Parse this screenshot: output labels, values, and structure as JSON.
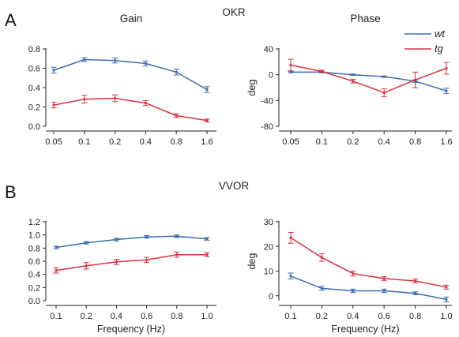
{
  "figure": {
    "panel_a": {
      "letter": "A",
      "label": "OKR"
    },
    "panel_b": {
      "letter": "B",
      "label": "VVOR"
    },
    "colors": {
      "wt": "#3b6eb0",
      "tg": "#d9333f"
    },
    "legend": [
      {
        "name": "wt",
        "color": "#3b6eb0"
      },
      {
        "name": "tg",
        "color": "#d9333f"
      }
    ]
  },
  "chart_data": [
    {
      "id": "okr_gain",
      "type": "line",
      "title": "Gain",
      "xlabel": "",
      "ylabel": "",
      "categories": [
        "0.05",
        "0.1",
        "0.2",
        "0.4",
        "0.8",
        "1.6"
      ],
      "ylim": [
        0,
        0.8
      ],
      "yticks": [
        "0.0",
        "0.2",
        "0.4",
        "0.6",
        "0.8"
      ],
      "series": [
        {
          "name": "wt",
          "color": "#3b6eb0",
          "values": [
            0.58,
            0.69,
            0.68,
            0.65,
            0.56,
            0.38
          ],
          "errors": [
            0.03,
            0.02,
            0.025,
            0.025,
            0.03,
            0.03
          ]
        },
        {
          "name": "tg",
          "color": "#d9333f",
          "values": [
            0.22,
            0.28,
            0.29,
            0.24,
            0.11,
            0.06
          ],
          "errors": [
            0.03,
            0.04,
            0.035,
            0.025,
            0.02,
            0.015
          ]
        }
      ]
    },
    {
      "id": "okr_phase",
      "type": "line",
      "title": "Phase",
      "xlabel": "",
      "ylabel": "deg",
      "categories": [
        "0.05",
        "0.1",
        "0.2",
        "0.4",
        "0.8",
        "1.6"
      ],
      "ylim": [
        -80,
        40
      ],
      "yticks": [
        "-80",
        "-40",
        "0",
        "40"
      ],
      "series": [
        {
          "name": "wt",
          "color": "#3b6eb0",
          "values": [
            4,
            4,
            0,
            -3,
            -10,
            -25
          ],
          "errors": [
            1,
            1,
            1,
            1,
            2,
            4
          ]
        },
        {
          "name": "tg",
          "color": "#d9333f",
          "values": [
            15,
            5,
            -10,
            -28,
            -8,
            10
          ],
          "errors": [
            9,
            2,
            3,
            6,
            12,
            9
          ]
        }
      ]
    },
    {
      "id": "vvor_gain",
      "type": "line",
      "title": "",
      "xlabel": "Frequency (Hz)",
      "ylabel": "",
      "categories": [
        "0.1",
        "0.2",
        "0.4",
        "0.6",
        "0.8",
        "1.0"
      ],
      "ylim": [
        0,
        1.2
      ],
      "yticks": [
        "0.0",
        "0.2",
        "0.4",
        "0.6",
        "0.8",
        "1.0",
        "1.2"
      ],
      "series": [
        {
          "name": "wt",
          "color": "#3b6eb0",
          "values": [
            0.81,
            0.88,
            0.93,
            0.97,
            0.98,
            0.94
          ],
          "errors": [
            0.02,
            0.02,
            0.02,
            0.02,
            0.02,
            0.02
          ]
        },
        {
          "name": "tg",
          "color": "#d9333f",
          "values": [
            0.46,
            0.53,
            0.59,
            0.62,
            0.7,
            0.7
          ],
          "errors": [
            0.04,
            0.05,
            0.04,
            0.04,
            0.04,
            0.03
          ]
        }
      ]
    },
    {
      "id": "vvor_phase",
      "type": "line",
      "title": "",
      "xlabel": "Frequency (Hz)",
      "ylabel": "deg",
      "categories": [
        "0.1",
        "0.2",
        "0.4",
        "0.6",
        "0.8",
        "1.0"
      ],
      "ylim": [
        -2,
        30
      ],
      "yticks": [
        "0",
        "10",
        "20",
        "30"
      ],
      "series": [
        {
          "name": "wt",
          "color": "#3b6eb0",
          "values": [
            8,
            3,
            2,
            2,
            1,
            -1.5
          ],
          "errors": [
            1.2,
            0.8,
            0.7,
            0.7,
            0.6,
            1.0
          ]
        },
        {
          "name": "tg",
          "color": "#d9333f",
          "values": [
            23.5,
            15.5,
            9,
            7,
            6,
            3.5
          ],
          "errors": [
            2.2,
            1.5,
            1.0,
            0.8,
            0.8,
            0.8
          ]
        }
      ]
    }
  ]
}
